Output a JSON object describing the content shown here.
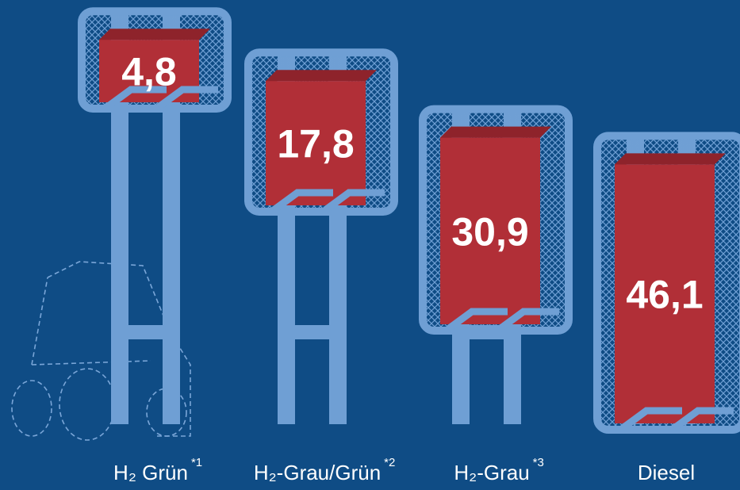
{
  "chart_data": {
    "type": "bar",
    "categories": [
      "H₂ Grün",
      "H₂-Grau/Grün",
      "H₂-Grau",
      "Diesel"
    ],
    "notes": [
      "*1",
      "*2",
      "*3",
      null
    ],
    "values": [
      4.8,
      17.8,
      30.9,
      46.1
    ],
    "value_labels": [
      "4,8",
      "17,8",
      "30,9",
      "46,1"
    ],
    "color": "#b12f37"
  }
}
